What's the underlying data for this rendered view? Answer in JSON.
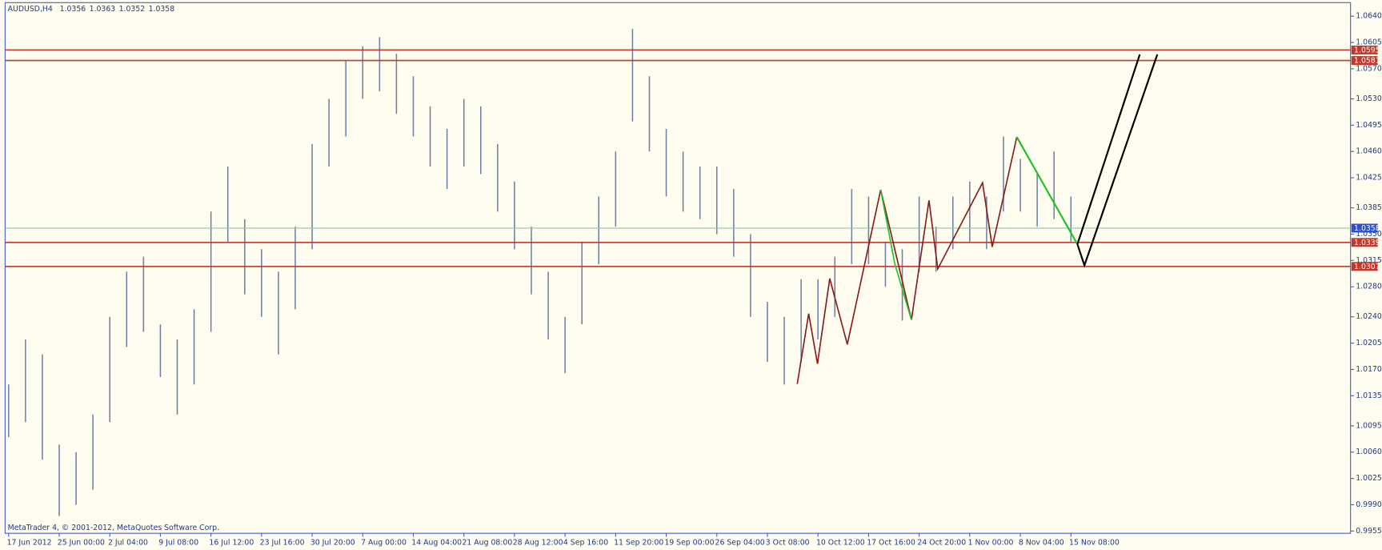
{
  "header": {
    "symbol": "AUDUSD,H4",
    "ohlc": [
      1.0356,
      1.0363,
      1.0352,
      1.0358
    ]
  },
  "footer": "MetaTrader 4, © 2001-2012, MetaQuotes Software Corp.",
  "chart_data": {
    "type": "ohlc",
    "color": "#6d7fa6",
    "categories": [
      "17 Jun 2012",
      null,
      null,
      "25 Jun 00:00",
      null,
      null,
      "2 Jul 04:00",
      null,
      null,
      "9 Jul 08:00",
      null,
      null,
      "16 Jul 12:00",
      null,
      null,
      "23 Jul 16:00",
      null,
      null,
      "30 Jul 20:00",
      null,
      null,
      "7 Aug 00:00",
      null,
      null,
      "14 Aug 04:00",
      null,
      null,
      "21 Aug 08:00",
      null,
      null,
      "28 Aug 12:00",
      null,
      null,
      "4 Sep 16:00",
      null,
      null,
      "11 Sep 20:00",
      null,
      null,
      "19 Sep 00:00",
      null,
      null,
      "26 Sep 04:00",
      null,
      null,
      "3 Oct 08:00",
      null,
      null,
      "10 Oct 12:00",
      null,
      null,
      "17 Oct 16:00",
      null,
      null,
      "24 Oct 20:00",
      null,
      null,
      "1 Nov 00:00",
      null,
      null,
      "8 Nov 04:00",
      null,
      null,
      "15 Nov 08:00"
    ],
    "high": [
      1.015,
      1.021,
      1.019,
      1.007,
      1.006,
      1.011,
      1.024,
      1.03,
      1.032,
      1.023,
      1.021,
      1.025,
      1.038,
      1.044,
      1.037,
      1.033,
      1.03,
      1.036,
      1.047,
      1.053,
      1.058,
      1.06,
      1.0612,
      1.059,
      1.056,
      1.052,
      1.049,
      1.053,
      1.052,
      1.047,
      1.042,
      1.036,
      1.03,
      1.024,
      1.034,
      1.04,
      1.046,
      1.0623,
      1.056,
      1.049,
      1.046,
      1.044,
      1.044,
      1.041,
      1.035,
      1.026,
      1.024,
      1.029,
      1.029,
      1.032,
      1.041,
      1.04,
      1.034,
      1.033,
      1.04,
      1.036,
      1.04,
      1.042,
      1.04,
      1.048,
      1.045,
      1.043,
      1.046,
      1.04
    ],
    "low": [
      1.008,
      1.01,
      1.005,
      0.9975,
      0.999,
      1.001,
      1.01,
      1.02,
      1.022,
      1.016,
      1.011,
      1.015,
      1.022,
      1.034,
      1.027,
      1.024,
      1.019,
      1.025,
      1.033,
      1.044,
      1.048,
      1.053,
      1.054,
      1.051,
      1.048,
      1.044,
      1.041,
      1.044,
      1.043,
      1.038,
      1.033,
      1.027,
      1.021,
      1.0165,
      1.023,
      1.031,
      1.036,
      1.05,
      1.046,
      1.04,
      1.038,
      1.037,
      1.035,
      1.032,
      1.024,
      1.018,
      1.015,
      1.018,
      1.021,
      1.024,
      1.031,
      1.031,
      1.028,
      1.0235,
      1.03,
      1.03,
      1.033,
      1.034,
      1.033,
      1.038,
      1.038,
      1.036,
      1.037,
      1.034
    ],
    "ylim": [
      0.9952,
      1.0658
    ],
    "yticks": [
      {
        "value": 1.064,
        "label": "1.0640"
      },
      1.0605,
      {
        "value": 1.057,
        "label": "1.0570"
      },
      {
        "value": 1.053,
        "label": "1.0530"
      },
      1.0495,
      {
        "value": 1.046,
        "label": "1.0460"
      },
      1.0425,
      1.0385,
      {
        "value": 1.035,
        "label": "1.0350"
      },
      1.0315,
      {
        "value": 1.028,
        "label": "1.0280"
      },
      {
        "value": 1.024,
        "label": "1.0240"
      },
      1.0205,
      {
        "value": 1.017,
        "label": "1.0170"
      },
      1.0135,
      1.0095,
      {
        "value": 1.006,
        "label": "1.0060"
      },
      1.0025,
      {
        "value": 0.999,
        "label": "0.9990"
      },
      0.9955
    ],
    "levels": [
      {
        "value": 1.0595,
        "color": "#c0392b"
      },
      {
        "value": 1.0581,
        "color": "#c0392b"
      },
      {
        "value": 1.0339,
        "color": "#c0392b"
      },
      {
        "value": 1.0307,
        "color": "#c0392b"
      },
      {
        "value": 1.0358,
        "color": "#8cc99a",
        "label_color": "#2f4fc4"
      }
    ]
  }
}
